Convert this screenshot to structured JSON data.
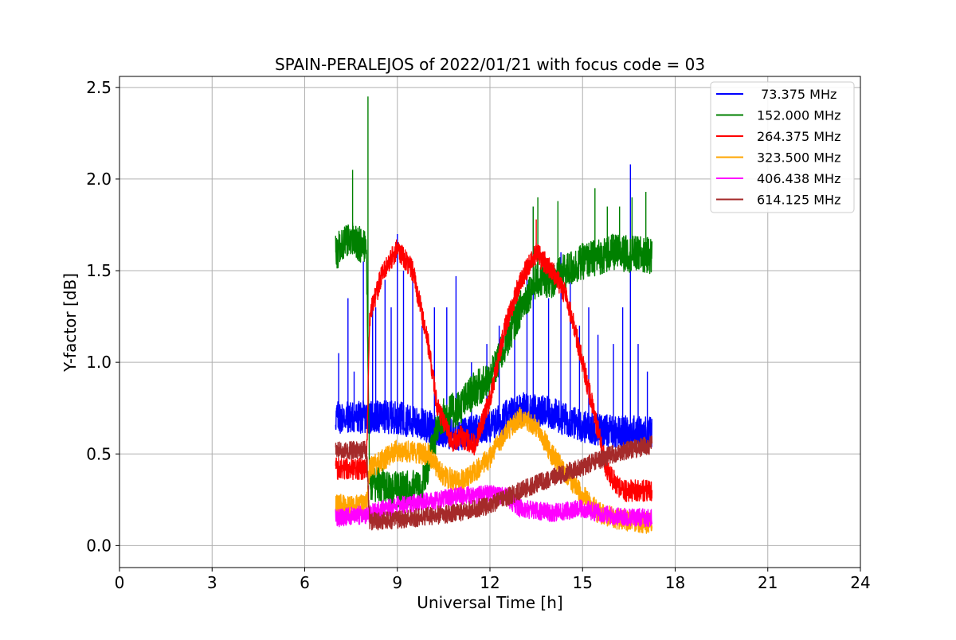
{
  "chart_data": {
    "type": "line",
    "title": "SPAIN-PERALEJOS of 2022/01/21 with focus code = 03",
    "xlabel": "Universal Time [h]",
    "ylabel": "Y-factor [dB]",
    "xlim": [
      0,
      24
    ],
    "ylim": [
      -0.12,
      2.56
    ],
    "xticks": [
      0,
      3,
      6,
      9,
      12,
      15,
      18,
      21,
      24
    ],
    "yticks": [
      0.0,
      0.5,
      1.0,
      1.5,
      2.0,
      2.5
    ],
    "ytick_labels": [
      "0.0",
      "0.5",
      "1.0",
      "1.5",
      "2.0",
      "2.5"
    ],
    "grid": true,
    "legend_position": "top-right",
    "data_range_h": [
      7.0,
      17.25
    ],
    "series": [
      {
        "name": " 73.375 MHz",
        "color": "#0000ff",
        "noise": 0.09,
        "spikes": [
          [
            7.1,
            1.05
          ],
          [
            7.4,
            1.35
          ],
          [
            7.6,
            0.95
          ],
          [
            7.9,
            1.55
          ],
          [
            8.2,
            1.35
          ],
          [
            8.3,
            1.3
          ],
          [
            8.6,
            1.45
          ],
          [
            8.8,
            1.3
          ],
          [
            9.0,
            1.7
          ],
          [
            9.2,
            1.5
          ],
          [
            9.5,
            1.45
          ],
          [
            9.8,
            1.2
          ],
          [
            10.2,
            1.3
          ],
          [
            10.6,
            1.3
          ],
          [
            10.9,
            1.47
          ],
          [
            11.4,
            1.0
          ],
          [
            11.9,
            1.1
          ],
          [
            12.3,
            1.2
          ],
          [
            12.8,
            1.2
          ],
          [
            13.2,
            1.5
          ],
          [
            13.4,
            1.85
          ],
          [
            13.9,
            1.35
          ],
          [
            14.3,
            1.6
          ],
          [
            14.6,
            1.45
          ],
          [
            14.9,
            1.2
          ],
          [
            15.2,
            1.3
          ],
          [
            15.5,
            1.15
          ],
          [
            16.0,
            1.1
          ],
          [
            16.3,
            1.3
          ],
          [
            16.55,
            2.08
          ],
          [
            16.8,
            1.1
          ],
          [
            17.1,
            0.95
          ]
        ],
        "points": [
          [
            7.0,
            0.7
          ],
          [
            8.0,
            0.7
          ],
          [
            9.0,
            0.7
          ],
          [
            10.0,
            0.65
          ],
          [
            11.0,
            0.6
          ],
          [
            12.0,
            0.65
          ],
          [
            13.0,
            0.75
          ],
          [
            14.0,
            0.72
          ],
          [
            15.0,
            0.65
          ],
          [
            16.0,
            0.62
          ],
          [
            17.25,
            0.62
          ]
        ]
      },
      {
        "name": "152.000 MHz",
        "color": "#008000",
        "noise": 0.1,
        "spikes": [
          [
            7.55,
            2.05
          ],
          [
            8.05,
            2.45
          ],
          [
            13.4,
            1.85
          ],
          [
            13.55,
            1.9
          ],
          [
            14.2,
            1.88
          ],
          [
            15.4,
            1.95
          ],
          [
            15.8,
            1.85
          ],
          [
            16.2,
            1.85
          ],
          [
            16.6,
            1.9
          ],
          [
            17.05,
            1.93
          ]
        ],
        "points": [
          [
            7.0,
            1.6
          ],
          [
            7.5,
            1.68
          ],
          [
            8.0,
            1.62
          ],
          [
            8.1,
            0.35
          ],
          [
            9.0,
            0.3
          ],
          [
            9.8,
            0.32
          ],
          [
            10.4,
            0.7
          ],
          [
            11.0,
            0.75
          ],
          [
            11.5,
            0.85
          ],
          [
            12.0,
            0.9
          ],
          [
            12.5,
            1.1
          ],
          [
            13.0,
            1.3
          ],
          [
            13.5,
            1.45
          ],
          [
            14.0,
            1.45
          ],
          [
            14.5,
            1.5
          ],
          [
            15.0,
            1.55
          ],
          [
            16.0,
            1.6
          ],
          [
            17.25,
            1.58
          ]
        ]
      },
      {
        "name": "264.375 MHz",
        "color": "#ff0000",
        "noise": 0.06,
        "spikes": [
          [
            13.5,
            1.78
          ]
        ],
        "points": [
          [
            7.0,
            0.42
          ],
          [
            8.0,
            0.42
          ],
          [
            8.1,
            1.25
          ],
          [
            8.5,
            1.48
          ],
          [
            9.0,
            1.62
          ],
          [
            9.5,
            1.5
          ],
          [
            10.0,
            1.1
          ],
          [
            10.3,
            0.75
          ],
          [
            10.8,
            0.55
          ],
          [
            11.0,
            0.6
          ],
          [
            11.5,
            0.55
          ],
          [
            12.0,
            0.8
          ],
          [
            12.5,
            1.2
          ],
          [
            13.0,
            1.45
          ],
          [
            13.5,
            1.6
          ],
          [
            14.0,
            1.5
          ],
          [
            14.5,
            1.35
          ],
          [
            15.0,
            1.0
          ],
          [
            15.4,
            0.7
          ],
          [
            15.8,
            0.4
          ],
          [
            16.3,
            0.3
          ],
          [
            17.25,
            0.3
          ]
        ]
      },
      {
        "name": "323.500 MHz",
        "color": "#ffa500",
        "noise": 0.06,
        "spikes": [],
        "points": [
          [
            7.0,
            0.22
          ],
          [
            8.0,
            0.22
          ],
          [
            8.1,
            0.42
          ],
          [
            9.0,
            0.52
          ],
          [
            10.0,
            0.5
          ],
          [
            10.5,
            0.38
          ],
          [
            11.0,
            0.35
          ],
          [
            11.5,
            0.4
          ],
          [
            12.0,
            0.48
          ],
          [
            12.5,
            0.62
          ],
          [
            13.0,
            0.7
          ],
          [
            13.5,
            0.65
          ],
          [
            14.0,
            0.5
          ],
          [
            14.5,
            0.38
          ],
          [
            15.0,
            0.28
          ],
          [
            15.5,
            0.18
          ],
          [
            16.0,
            0.15
          ],
          [
            17.25,
            0.12
          ]
        ]
      },
      {
        "name": "406.438 MHz",
        "color": "#ff00ff",
        "noise": 0.05,
        "spikes": [],
        "points": [
          [
            7.0,
            0.15
          ],
          [
            8.0,
            0.17
          ],
          [
            9.0,
            0.22
          ],
          [
            10.0,
            0.24
          ],
          [
            11.0,
            0.27
          ],
          [
            12.0,
            0.28
          ],
          [
            12.5,
            0.27
          ],
          [
            13.0,
            0.2
          ],
          [
            14.0,
            0.18
          ],
          [
            15.0,
            0.2
          ],
          [
            16.0,
            0.16
          ],
          [
            17.25,
            0.15
          ]
        ]
      },
      {
        "name": "614.125 MHz",
        "color": "#a52a2a",
        "noise": 0.05,
        "spikes": [],
        "points": [
          [
            7.0,
            0.52
          ],
          [
            8.0,
            0.52
          ],
          [
            8.1,
            0.13
          ],
          [
            9.0,
            0.14
          ],
          [
            10.0,
            0.16
          ],
          [
            11.0,
            0.18
          ],
          [
            12.0,
            0.22
          ],
          [
            13.0,
            0.3
          ],
          [
            14.0,
            0.37
          ],
          [
            15.0,
            0.43
          ],
          [
            16.0,
            0.5
          ],
          [
            17.25,
            0.55
          ]
        ]
      }
    ]
  }
}
